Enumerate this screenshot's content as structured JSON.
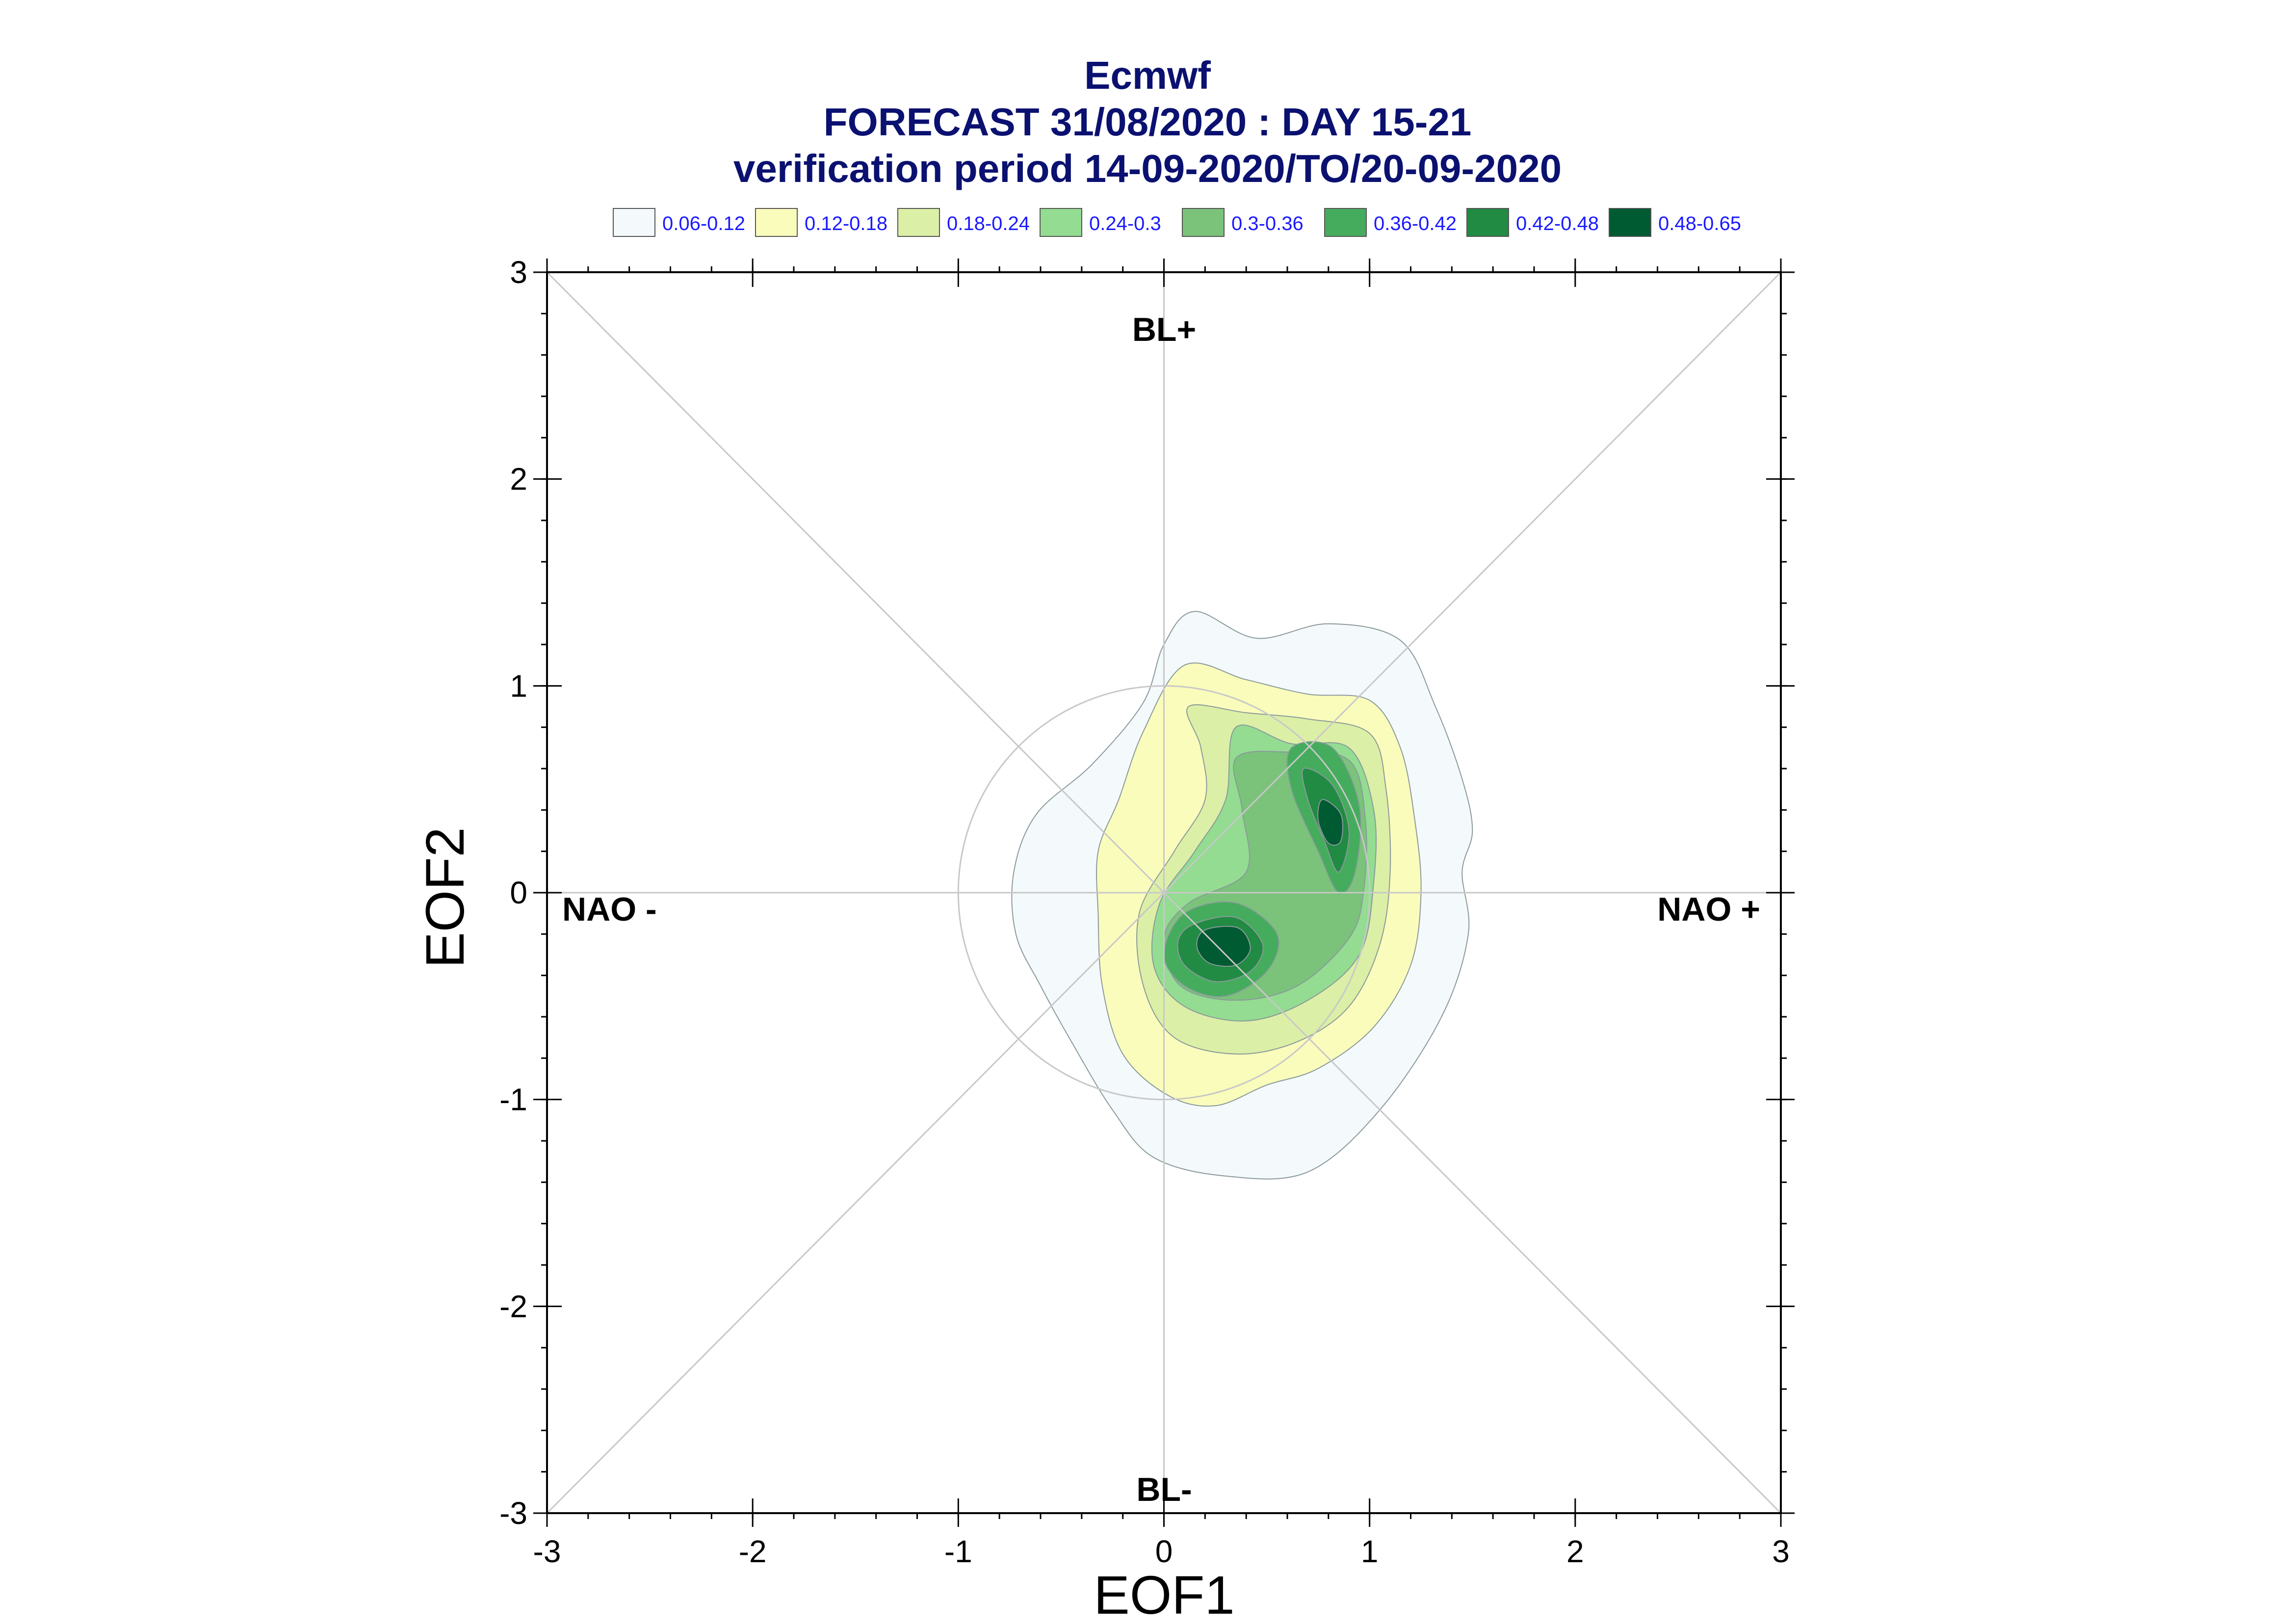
{
  "titles": {
    "line1": "Ecmwf",
    "line2": "FORECAST 31/08/2020 : DAY 15-21",
    "line3": "verification period 14-09-2020/TO/20-09-2020"
  },
  "chart_data": {
    "type": "contour",
    "title": "Ecmwf",
    "subtitle": "FORECAST 31/08/2020 : DAY 15-21 / verification period 14-09-2020/TO/20-09-2020",
    "xlabel": "EOF1",
    "ylabel": "EOF2",
    "xlim": [
      -3,
      3
    ],
    "ylim": [
      -3,
      3
    ],
    "xticks": [
      "-3",
      "-2",
      "-1",
      "0",
      "1",
      "2",
      "3"
    ],
    "yticks": [
      "3",
      "2",
      "1",
      "0",
      "-1",
      "-2",
      "-3"
    ],
    "region_labels": [
      "BL+",
      "BL-",
      "NAO -",
      "NAO +"
    ],
    "unit_circle_radius": 1,
    "legend": [
      {
        "label": "0.06-0.12",
        "color": "#f4f9fc"
      },
      {
        "label": "0.12-0.18",
        "color": "#fafcbc"
      },
      {
        "label": "0.18-0.24",
        "color": "#dcefa7"
      },
      {
        "label": "0.24-0.3",
        "color": "#93dc91"
      },
      {
        "label": "0.3-0.36",
        "color": "#7bc27b"
      },
      {
        "label": "0.36-0.42",
        "color": "#45ac5d"
      },
      {
        "label": "0.42-0.48",
        "color": "#218a43"
      },
      {
        "label": "0.48-0.65",
        "color": "#005a32"
      }
    ],
    "contours": [
      {
        "level": "0.06-0.12",
        "points": [
          [
            0.15,
            1.36
          ],
          [
            0.45,
            1.23
          ],
          [
            0.8,
            1.3
          ],
          [
            1.15,
            1.22
          ],
          [
            1.32,
            0.9
          ],
          [
            1.45,
            0.55
          ],
          [
            1.5,
            0.3
          ],
          [
            1.45,
            0.1
          ],
          [
            1.48,
            -0.2
          ],
          [
            1.35,
            -0.6
          ],
          [
            1.05,
            -1.05
          ],
          [
            0.7,
            -1.35
          ],
          [
            0.3,
            -1.37
          ],
          [
            -0.05,
            -1.28
          ],
          [
            -0.25,
            -1.05
          ],
          [
            -0.45,
            -0.72
          ],
          [
            -0.6,
            -0.45
          ],
          [
            -0.72,
            -0.2
          ],
          [
            -0.73,
            0.1
          ],
          [
            -0.62,
            0.38
          ],
          [
            -0.35,
            0.62
          ],
          [
            -0.1,
            0.92
          ],
          [
            0.0,
            1.2
          ]
        ]
      },
      {
        "level": "0.12-0.18",
        "points": [
          [
            0.1,
            1.1
          ],
          [
            0.4,
            1.03
          ],
          [
            0.7,
            0.96
          ],
          [
            1.0,
            0.93
          ],
          [
            1.15,
            0.7
          ],
          [
            1.22,
            0.35
          ],
          [
            1.25,
            0.0
          ],
          [
            1.2,
            -0.35
          ],
          [
            1.02,
            -0.65
          ],
          [
            0.75,
            -0.85
          ],
          [
            0.5,
            -0.93
          ],
          [
            0.25,
            -1.03
          ],
          [
            0.02,
            -0.98
          ],
          [
            -0.2,
            -0.78
          ],
          [
            -0.3,
            -0.45
          ],
          [
            -0.32,
            -0.1
          ],
          [
            -0.32,
            0.2
          ],
          [
            -0.22,
            0.45
          ],
          [
            -0.1,
            0.78
          ]
        ]
      },
      {
        "level": "0.18-0.24",
        "points": [
          [
            0.12,
            0.9
          ],
          [
            0.4,
            0.87
          ],
          [
            0.7,
            0.84
          ],
          [
            1.0,
            0.77
          ],
          [
            1.08,
            0.5
          ],
          [
            1.1,
            0.1
          ],
          [
            1.05,
            -0.25
          ],
          [
            0.9,
            -0.55
          ],
          [
            0.65,
            -0.72
          ],
          [
            0.35,
            -0.78
          ],
          [
            0.05,
            -0.7
          ],
          [
            -0.1,
            -0.45
          ],
          [
            -0.12,
            -0.1
          ],
          [
            0.05,
            0.2
          ],
          [
            0.2,
            0.45
          ],
          [
            0.18,
            0.7
          ]
        ]
      },
      {
        "level": "0.24-0.3",
        "points": [
          [
            0.35,
            0.8
          ],
          [
            0.62,
            0.72
          ],
          [
            0.9,
            0.7
          ],
          [
            1.02,
            0.4
          ],
          [
            1.02,
            0.05
          ],
          [
            0.95,
            -0.3
          ],
          [
            0.7,
            -0.52
          ],
          [
            0.4,
            -0.62
          ],
          [
            0.1,
            -0.55
          ],
          [
            -0.05,
            -0.35
          ],
          [
            -0.02,
            -0.05
          ],
          [
            0.15,
            0.2
          ],
          [
            0.3,
            0.45
          ]
        ]
      },
      {
        "level": "0.3-0.36",
        "points": [
          [
            0.35,
            0.65
          ],
          [
            0.6,
            0.68
          ],
          [
            0.9,
            0.64
          ],
          [
            0.98,
            0.35
          ],
          [
            0.97,
            0.0
          ],
          [
            0.9,
            -0.22
          ],
          [
            0.65,
            -0.45
          ],
          [
            0.35,
            -0.52
          ],
          [
            0.08,
            -0.45
          ],
          [
            0.0,
            -0.22
          ],
          [
            0.12,
            -0.05
          ],
          [
            0.4,
            0.1
          ],
          [
            0.38,
            0.4
          ]
        ]
      },
      {
        "level": "0.36-0.42",
        "points": [
          [
            0.62,
            0.7
          ],
          [
            0.82,
            0.7
          ],
          [
            0.95,
            0.42
          ],
          [
            0.93,
            0.1
          ],
          [
            0.85,
            0.0
          ],
          [
            0.75,
            0.2
          ],
          [
            0.62,
            0.5
          ]
        ]
      },
      {
        "level": "0.36-0.42",
        "points": [
          [
            0.1,
            -0.1
          ],
          [
            0.35,
            -0.05
          ],
          [
            0.55,
            -0.2
          ],
          [
            0.5,
            -0.38
          ],
          [
            0.3,
            -0.5
          ],
          [
            0.1,
            -0.45
          ],
          [
            0.0,
            -0.3
          ]
        ]
      },
      {
        "level": "0.42-0.48",
        "points": [
          [
            0.68,
            0.6
          ],
          [
            0.82,
            0.52
          ],
          [
            0.9,
            0.3
          ],
          [
            0.85,
            0.1
          ],
          [
            0.78,
            0.25
          ],
          [
            0.7,
            0.45
          ]
        ]
      },
      {
        "level": "0.42-0.48",
        "points": [
          [
            0.15,
            -0.15
          ],
          [
            0.35,
            -0.12
          ],
          [
            0.48,
            -0.25
          ],
          [
            0.42,
            -0.38
          ],
          [
            0.25,
            -0.43
          ],
          [
            0.1,
            -0.35
          ],
          [
            0.07,
            -0.23
          ]
        ]
      },
      {
        "level": "0.48-0.65",
        "points": [
          [
            0.77,
            0.45
          ],
          [
            0.86,
            0.38
          ],
          [
            0.86,
            0.25
          ],
          [
            0.8,
            0.24
          ],
          [
            0.75,
            0.35
          ]
        ]
      },
      {
        "level": "0.48-0.65",
        "points": [
          [
            0.2,
            -0.18
          ],
          [
            0.36,
            -0.17
          ],
          [
            0.42,
            -0.27
          ],
          [
            0.35,
            -0.35
          ],
          [
            0.22,
            -0.34
          ],
          [
            0.16,
            -0.26
          ]
        ]
      }
    ]
  }
}
